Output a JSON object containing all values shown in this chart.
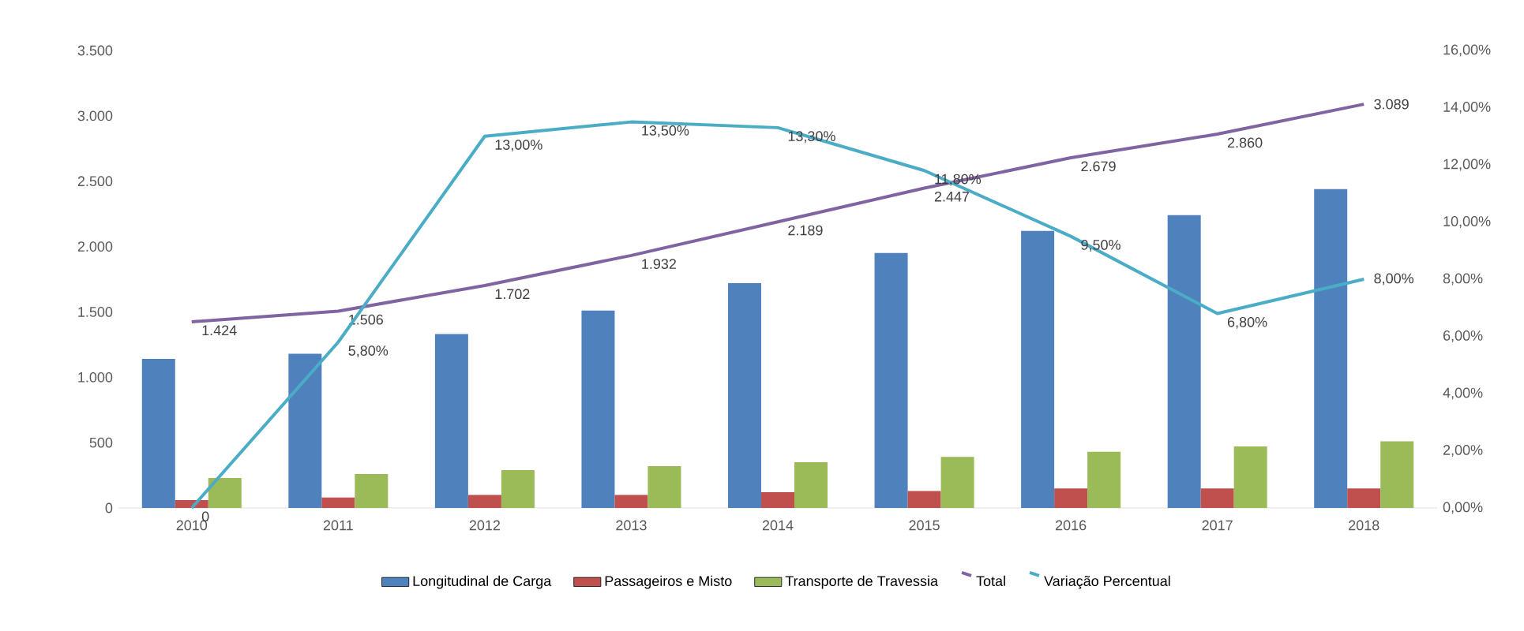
{
  "chart_data": {
    "type": "bar",
    "categories": [
      "2010",
      "2011",
      "2012",
      "2013",
      "2014",
      "2015",
      "2016",
      "2017",
      "2018"
    ],
    "series": [
      {
        "name": "Longitudinal de Carga",
        "color": "#4f81bd",
        "values": [
          1140,
          1180,
          1330,
          1510,
          1720,
          1950,
          2120,
          2240,
          2440
        ]
      },
      {
        "name": "Passageiros e Misto",
        "color": "#c0504d",
        "values": [
          60,
          80,
          100,
          100,
          120,
          130,
          150,
          150,
          150
        ]
      },
      {
        "name": "Transporte de Travessia",
        "color": "#9bbb59",
        "values": [
          230,
          260,
          290,
          320,
          350,
          390,
          430,
          470,
          510
        ]
      },
      {
        "name": "Total",
        "type": "line",
        "color": "#8064a2",
        "values": [
          1424,
          1506,
          1702,
          1932,
          2189,
          2447,
          2679,
          2860,
          3089
        ],
        "value_labels": [
          "1.424",
          "1.506",
          "1.702",
          "1.932",
          "2.189",
          "2.447",
          "2.679",
          "2.860",
          "3.089"
        ]
      },
      {
        "name": "Variação Percentual",
        "type": "line",
        "axis": "y2",
        "color": "#4bacc6",
        "values": [
          0,
          5.8,
          13.0,
          13.5,
          13.3,
          11.8,
          9.5,
          6.8,
          8.0
        ],
        "value_labels": [
          "0",
          "5,80%",
          "13,00%",
          "13,50%",
          "13,30%",
          "11,80%",
          "9,50%",
          "6,80%",
          "8,00%"
        ]
      }
    ],
    "ylim": [
      0,
      3500
    ],
    "yticks": [
      0,
      500,
      {
        "value": 1000,
        "label": "1.000"
      },
      {
        "value": 1500,
        "label": "1.500"
      },
      {
        "value": 2000,
        "label": "2.000"
      },
      {
        "value": 2500,
        "label": "2.500"
      },
      {
        "value": 3000,
        "label": "3.000"
      },
      {
        "value": 3500,
        "label": "3.500"
      }
    ],
    "y2lim": [
      0,
      16
    ],
    "y2ticks": [
      {
        "value": 0,
        "label": "0,00%"
      },
      {
        "value": 2,
        "label": "2,00%"
      },
      {
        "value": 4,
        "label": "4,00%"
      },
      {
        "value": 6,
        "label": "6,00%"
      },
      {
        "value": 8,
        "label": "8,00%"
      },
      {
        "value": 10,
        "label": "10,00%"
      },
      {
        "value": 12,
        "label": "12,00%"
      },
      {
        "value": 14,
        "label": "14,00%"
      },
      {
        "value": 16,
        "label": "16,00%"
      }
    ],
    "legend": "bottom"
  }
}
